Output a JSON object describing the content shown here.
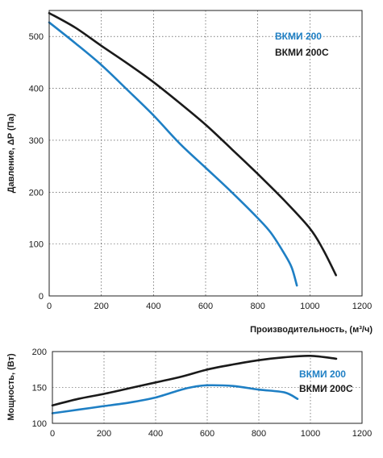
{
  "chart_data": [
    {
      "type": "line",
      "title": "",
      "xlabel": "Производительность, (м³/ч)",
      "ylabel": "Давление, ΔP (Па)",
      "xlim": [
        0,
        1200
      ],
      "ylim": [
        0,
        550
      ],
      "x_ticks": [
        0,
        200,
        400,
        600,
        800,
        1000,
        1200
      ],
      "y_ticks": [
        0,
        100,
        200,
        300,
        400,
        500
      ],
      "grid": true,
      "legend_position": "top-right",
      "series": [
        {
          "name": "ВКМИ 200",
          "color": "#1e7fc4",
          "points": [
            [
              0,
              527
            ],
            [
              100,
              487
            ],
            [
              200,
              445
            ],
            [
              300,
              397
            ],
            [
              400,
              348
            ],
            [
              500,
              294
            ],
            [
              600,
              247
            ],
            [
              700,
              200
            ],
            [
              800,
              150
            ],
            [
              850,
              122
            ],
            [
              900,
              83
            ],
            [
              930,
              55
            ],
            [
              950,
              20
            ]
          ]
        },
        {
          "name": "ВКМИ 200С",
          "color": "#1a1a1a",
          "points": [
            [
              0,
              545
            ],
            [
              100,
              517
            ],
            [
              200,
              482
            ],
            [
              300,
              448
            ],
            [
              400,
              412
            ],
            [
              500,
              372
            ],
            [
              600,
              330
            ],
            [
              700,
              283
            ],
            [
              800,
              235
            ],
            [
              900,
              185
            ],
            [
              1000,
              130
            ],
            [
              1050,
              90
            ],
            [
              1100,
              40
            ]
          ]
        }
      ]
    },
    {
      "type": "line",
      "title": "",
      "xlabel": "",
      "ylabel": "Мощность, (Вт)",
      "xlim": [
        0,
        1200
      ],
      "ylim": [
        100,
        200
      ],
      "x_ticks": [
        0,
        200,
        400,
        600,
        800,
        1000,
        1200
      ],
      "y_ticks": [
        100,
        150,
        200
      ],
      "grid": true,
      "legend_position": "right",
      "series": [
        {
          "name": "ВКМИ 200",
          "color": "#1e7fc4",
          "points": [
            [
              0,
              114
            ],
            [
              100,
              119
            ],
            [
              200,
              124
            ],
            [
              300,
              129
            ],
            [
              400,
              136
            ],
            [
              500,
              147
            ],
            [
              550,
              151
            ],
            [
              600,
              153
            ],
            [
              700,
              152
            ],
            [
              800,
              147
            ],
            [
              900,
              143
            ],
            [
              950,
              134
            ]
          ]
        },
        {
          "name": "ВКМИ 200С",
          "color": "#1a1a1a",
          "points": [
            [
              0,
              125
            ],
            [
              100,
              134
            ],
            [
              200,
              141
            ],
            [
              300,
              149
            ],
            [
              400,
              157
            ],
            [
              500,
              165
            ],
            [
              600,
              175
            ],
            [
              700,
              182
            ],
            [
              800,
              188
            ],
            [
              900,
              192
            ],
            [
              1000,
              194
            ],
            [
              1100,
              190
            ]
          ]
        }
      ]
    }
  ]
}
